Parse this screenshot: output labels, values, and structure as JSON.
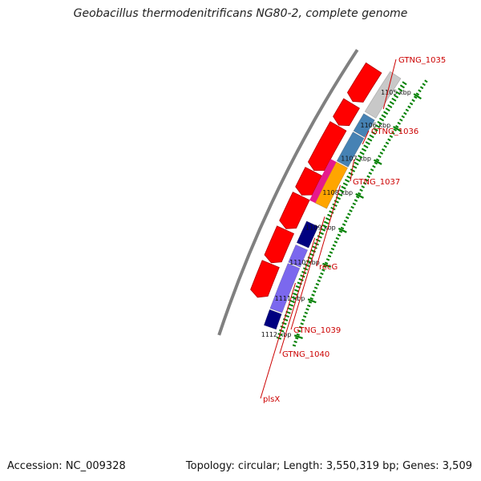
{
  "title": "Geobacillus thermodenitrificans NG80-2, complete genome",
  "footer": {
    "accession": "Accession: NC_009328",
    "summary": "Topology: circular; Length: 3,550,319 bp; Genes: 3,509"
  },
  "ticks": [
    {
      "label": "1105 kbp",
      "kbp": 1105
    },
    {
      "label": "1106 kbp",
      "kbp": 1106
    },
    {
      "label": "1107 kbp",
      "kbp": 1107
    },
    {
      "label": "1108 kbp",
      "kbp": 1108
    },
    {
      "label": "1109 kbp",
      "kbp": 1109
    },
    {
      "label": "1110 kbp",
      "kbp": 1110
    },
    {
      "label": "1111 kbp",
      "kbp": 1111
    },
    {
      "label": "1112 kbp",
      "kbp": 1112
    }
  ],
  "genes": [
    {
      "name": "GTNG_1035"
    },
    {
      "name": "GTNG_1036"
    },
    {
      "name": "GTNG_1037"
    },
    {
      "name": "recG"
    },
    {
      "name": "GTNG_1039"
    },
    {
      "name": "GTNG_1040"
    },
    {
      "name": "plsX"
    }
  ],
  "colors": {
    "backbone": "#808080",
    "strand_forward": "#ff0000",
    "strand_reverse": "#c8c8c8",
    "cog_blue": "#4682b4",
    "cog_magenta": "#e6198c",
    "cog_orange": "#ffa500",
    "cog_navy": "#000080",
    "cog_purple": "#7b68ee",
    "ticks": "#008000",
    "gene_labels": "#cc0000"
  }
}
